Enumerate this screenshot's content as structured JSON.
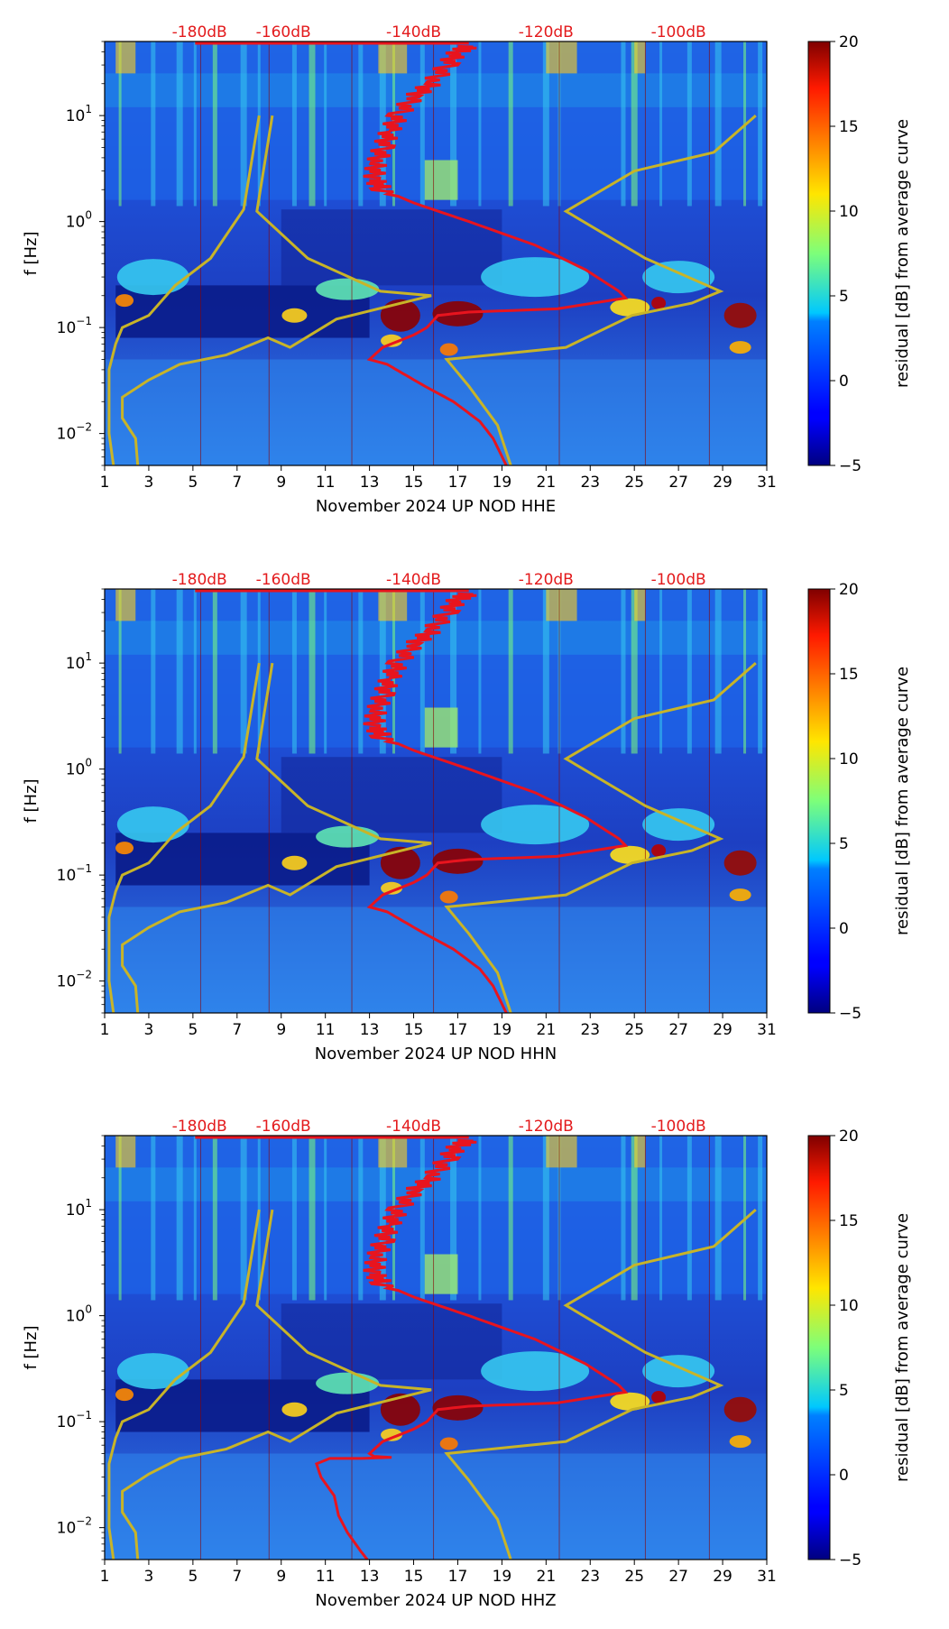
{
  "chart_data": [
    {
      "type": "heatmap",
      "title": "",
      "xlabel": "November 2024 UP NOD  HHE",
      "ylabel": "f [Hz]",
      "x_ticks": [
        "1",
        "3",
        "5",
        "7",
        "9",
        "11",
        "13",
        "15",
        "17",
        "19",
        "21",
        "23",
        "25",
        "27",
        "29",
        "31"
      ],
      "y_ticks": [
        {
          "base": "10",
          "exp": "1"
        },
        {
          "base": "10",
          "exp": "0"
        },
        {
          "base": "10",
          "exp": "−1"
        },
        {
          "base": "10",
          "exp": "−2"
        }
      ],
      "db_ticks": [
        "-180dB",
        "-160dB",
        "-140dB",
        "-120dB",
        "-100dB"
      ],
      "xlim": [
        1,
        31
      ],
      "ylim": [
        0.005,
        50
      ],
      "colorbar": {
        "label": "residual [dB] from average curve",
        "ticks": [
          "20",
          "15",
          "10",
          "5",
          "0",
          "−5"
        ],
        "range": [
          -5,
          20
        ]
      },
      "series": [
        {
          "name": "model noise curves",
          "color": "#c8b428"
        },
        {
          "name": "average PSD",
          "color": "#e8141e"
        }
      ]
    },
    {
      "type": "heatmap",
      "title": "",
      "xlabel": "November 2024 UP NOD  HHN",
      "ylabel": "f [Hz]",
      "x_ticks": [
        "1",
        "3",
        "5",
        "7",
        "9",
        "11",
        "13",
        "15",
        "17",
        "19",
        "21",
        "23",
        "25",
        "27",
        "29",
        "31"
      ],
      "y_ticks": [
        {
          "base": "10",
          "exp": "1"
        },
        {
          "base": "10",
          "exp": "0"
        },
        {
          "base": "10",
          "exp": "−1"
        },
        {
          "base": "10",
          "exp": "−2"
        }
      ],
      "db_ticks": [
        "-180dB",
        "-160dB",
        "-140dB",
        "-120dB",
        "-100dB"
      ],
      "xlim": [
        1,
        31
      ],
      "ylim": [
        0.005,
        50
      ],
      "colorbar": {
        "label": "residual [dB] from average curve",
        "ticks": [
          "20",
          "15",
          "10",
          "5",
          "0",
          "−5"
        ],
        "range": [
          -5,
          20
        ]
      },
      "series": [
        {
          "name": "model noise curves",
          "color": "#c8b428"
        },
        {
          "name": "average PSD",
          "color": "#e8141e"
        }
      ]
    },
    {
      "type": "heatmap",
      "title": "",
      "xlabel": "November 2024 UP NOD  HHZ",
      "ylabel": "f [Hz]",
      "x_ticks": [
        "1",
        "3",
        "5",
        "7",
        "9",
        "11",
        "13",
        "15",
        "17",
        "19",
        "21",
        "23",
        "25",
        "27",
        "29",
        "31"
      ],
      "y_ticks": [
        {
          "base": "10",
          "exp": "1"
        },
        {
          "base": "10",
          "exp": "0"
        },
        {
          "base": "10",
          "exp": "−1"
        },
        {
          "base": "10",
          "exp": "−2"
        }
      ],
      "db_ticks": [
        "-180dB",
        "-160dB",
        "-140dB",
        "-120dB",
        "-100dB"
      ],
      "xlim": [
        1,
        31
      ],
      "ylim": [
        0.005,
        50
      ],
      "colorbar": {
        "label": "residual [dB] from average curve",
        "ticks": [
          "20",
          "15",
          "10",
          "5",
          "0",
          "−5"
        ],
        "range": [
          -5,
          20
        ]
      },
      "series": [
        {
          "name": "model noise curves",
          "color": "#c8b428"
        },
        {
          "name": "average PSD",
          "color": "#e8141e"
        }
      ]
    }
  ]
}
